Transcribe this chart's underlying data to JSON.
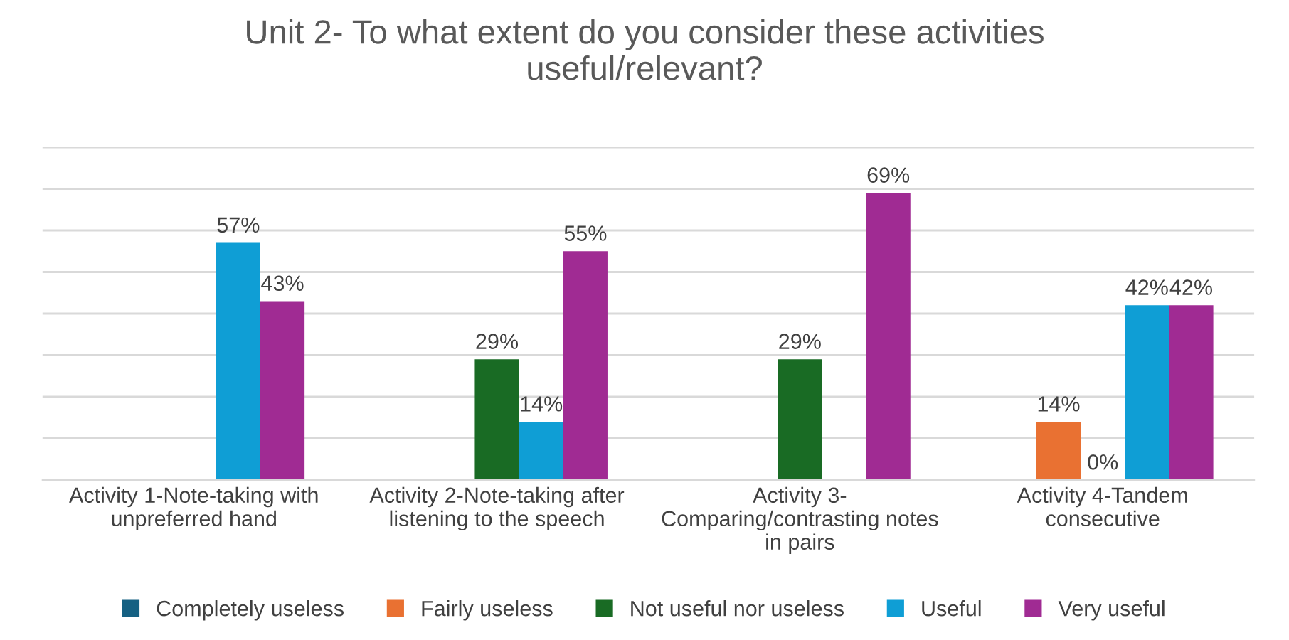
{
  "chart_data": {
    "type": "bar",
    "title": "Unit 2- To what extent do you consider these activities useful/relevant?",
    "categories": [
      "Activity 1-Note-taking with unpreferred hand",
      "Activity 2-Note-taking after listening to the speech",
      "Activity 3-Comparing/contrasting notes in pairs",
      "Activity 4-Tandem consecutive"
    ],
    "series": [
      {
        "name": "Completely useless",
        "color": "#156082",
        "values": [
          0,
          0,
          0,
          0
        ],
        "value_labels": [
          null,
          null,
          null,
          null
        ]
      },
      {
        "name": "Fairly useless",
        "color": "#e97132",
        "values": [
          0,
          0,
          0,
          14
        ],
        "value_labels": [
          null,
          null,
          null,
          "14%"
        ]
      },
      {
        "name": "Not useful nor useless",
        "color": "#196b24",
        "values": [
          0,
          29,
          29,
          0
        ],
        "value_labels": [
          null,
          "29%",
          "29%",
          "0%"
        ]
      },
      {
        "name": "Useful",
        "color": "#0f9ed5",
        "values": [
          57,
          14,
          0,
          42
        ],
        "value_labels": [
          "57%",
          "14%",
          null,
          "42%"
        ]
      },
      {
        "name": "Very useful",
        "color": "#a02b93",
        "values": [
          43,
          55,
          69,
          42
        ],
        "value_labels": [
          "43%",
          "55%",
          "69%",
          "42%"
        ]
      }
    ],
    "ylim": [
      0,
      80
    ],
    "yticks": [
      {
        "value": 0,
        "label": null
      },
      {
        "value": 10,
        "label": null
      },
      {
        "value": 20,
        "label": null
      },
      {
        "value": 30,
        "label": null
      },
      {
        "value": 40,
        "label": null
      },
      {
        "value": 50,
        "label": null
      },
      {
        "value": 60,
        "label": null
      },
      {
        "value": 70,
        "label": null
      },
      {
        "value": 80,
        "label": null
      }
    ],
    "grid": "y",
    "legend": "bottom",
    "tick_labels": "x"
  }
}
